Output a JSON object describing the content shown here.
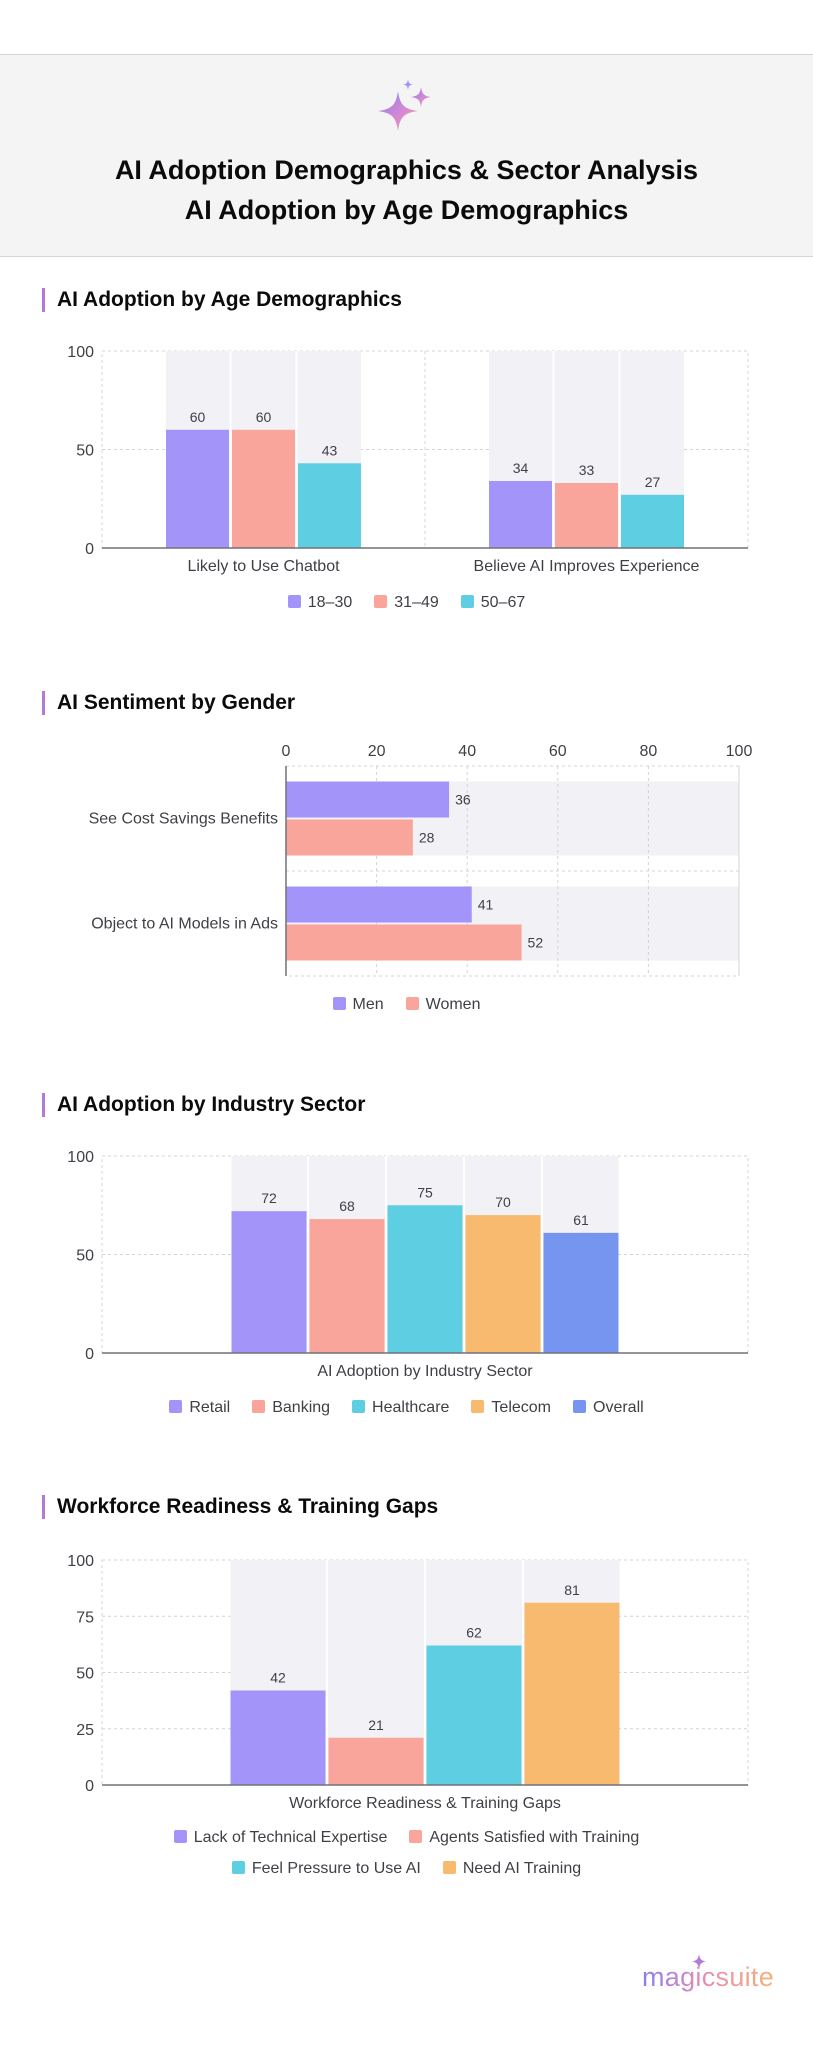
{
  "header": {
    "title_line1": "AI Adoption Demographics & Sector Analysis",
    "title_line2": "AI Adoption by Age Demographics",
    "icon": "sparkle-icon"
  },
  "brand": {
    "name": "magicsuite",
    "icon": "sparkle-icon"
  },
  "colors": {
    "purple": "#a294f9",
    "coral": "#f9a59b",
    "teal": "#5ecfe3",
    "orange": "#f8ba6e",
    "blue": "#7595f0",
    "accent": "#b47bd6"
  },
  "chart_data": [
    {
      "id": "age",
      "type": "bar",
      "title": "AI Adoption by Age Demographics",
      "categories": [
        "Likely to Use Chatbot",
        "Believe AI Improves Experience"
      ],
      "series": [
        {
          "name": "18–30",
          "values": [
            60,
            34
          ]
        },
        {
          "name": "31–49",
          "values": [
            60,
            33
          ]
        },
        {
          "name": "50–67",
          "values": [
            43,
            27
          ]
        }
      ],
      "ylim": [
        0,
        100
      ],
      "yticks": [
        0,
        50,
        100
      ],
      "legend": "bottom"
    },
    {
      "id": "gender",
      "type": "bar",
      "orientation": "horizontal",
      "title": "AI Sentiment by Gender",
      "categories": [
        "See Cost Savings Benefits",
        "Object to AI Models in Ads"
      ],
      "series": [
        {
          "name": "Men",
          "values": [
            36,
            41
          ]
        },
        {
          "name": "Women",
          "values": [
            28,
            52
          ]
        }
      ],
      "xlim": [
        0,
        100
      ],
      "xticks": [
        0,
        20,
        40,
        60,
        80,
        100
      ],
      "legend": "bottom"
    },
    {
      "id": "sector",
      "type": "bar",
      "title": "AI Adoption by Industry Sector",
      "categories": [
        "AI Adoption by Industry Sector"
      ],
      "series": [
        {
          "name": "Retail",
          "values": [
            72
          ]
        },
        {
          "name": "Banking",
          "values": [
            68
          ]
        },
        {
          "name": "Healthcare",
          "values": [
            75
          ]
        },
        {
          "name": "Telecom",
          "values": [
            70
          ]
        },
        {
          "name": "Overall",
          "values": [
            61
          ]
        }
      ],
      "ylim": [
        0,
        100
      ],
      "yticks": [
        0,
        50,
        100
      ],
      "legend": "bottom"
    },
    {
      "id": "workforce",
      "type": "bar",
      "title": "Workforce Readiness & Training Gaps",
      "categories": [
        "Workforce Readiness & Training Gaps"
      ],
      "series": [
        {
          "name": "Lack of Technical Expertise",
          "values": [
            42
          ]
        },
        {
          "name": "Agents Satisfied with Training",
          "values": [
            21
          ]
        },
        {
          "name": "Feel Pressure to Use AI",
          "values": [
            62
          ]
        },
        {
          "name": "Need AI Training",
          "values": [
            81
          ]
        }
      ],
      "ylim": [
        0,
        100
      ],
      "yticks": [
        0,
        25,
        50,
        75,
        100
      ],
      "legend": "bottom"
    }
  ]
}
